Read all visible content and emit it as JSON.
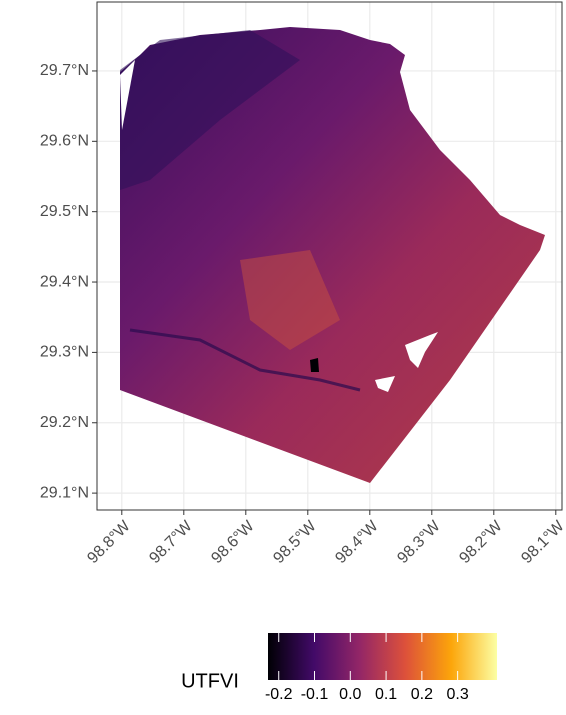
{
  "chart_data": {
    "type": "map",
    "xlim": [
      -98.84,
      -98.09
    ],
    "ylim": [
      29.076,
      29.798
    ],
    "xticks": [
      {
        "value": -98.8,
        "label": "98.8°W"
      },
      {
        "value": -98.7,
        "label": "98.7°W"
      },
      {
        "value": -98.6,
        "label": "98.6°W"
      },
      {
        "value": -98.5,
        "label": "98.5°W"
      },
      {
        "value": -98.4,
        "label": "98.4°W"
      },
      {
        "value": -98.3,
        "label": "98.3°W"
      },
      {
        "value": -98.2,
        "label": "98.2°W"
      },
      {
        "value": -98.1,
        "label": "98.1°W"
      }
    ],
    "yticks": [
      {
        "value": 29.1,
        "label": "29.1°N"
      },
      {
        "value": 29.2,
        "label": "29.2°N"
      },
      {
        "value": 29.3,
        "label": "29.3°N"
      },
      {
        "value": 29.4,
        "label": "29.4°N"
      },
      {
        "value": 29.5,
        "label": "29.5°N"
      },
      {
        "value": 29.6,
        "label": "29.6°N"
      },
      {
        "value": 29.7,
        "label": "29.7°N"
      }
    ],
    "grid": true,
    "legend": {
      "title": "UTFVI",
      "lim": [
        -0.23,
        0.41
      ],
      "ticks": [
        {
          "value": -0.2,
          "label": "-0.2"
        },
        {
          "value": -0.1,
          "label": "-0.1"
        },
        {
          "value": 0.0,
          "label": "0.0"
        },
        {
          "value": 0.1,
          "label": "0.1"
        },
        {
          "value": 0.2,
          "label": "0.2"
        },
        {
          "value": 0.3,
          "label": "0.3"
        }
      ],
      "colors": [
        "#000004",
        "#420a68",
        "#932667",
        "#dd513a",
        "#fca50a",
        "#fcffa4"
      ]
    }
  }
}
